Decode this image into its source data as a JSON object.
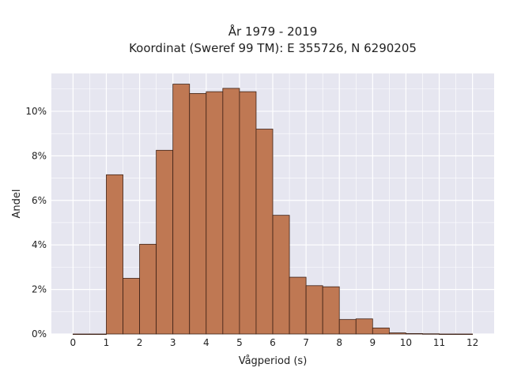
{
  "chart_data": {
    "type": "bar",
    "title_line1": "År 1979 - 2019",
    "title_line2": "Koordinat (Sweref 99 TM): E 355726, N 6290205",
    "xlabel": "Vågperiod (s)",
    "ylabel": "Andel",
    "bin_width": 0.5,
    "bin_starts": [
      0,
      0.5,
      1,
      1.5,
      2,
      2.5,
      3,
      3.5,
      4,
      4.5,
      5,
      5.5,
      6,
      6.5,
      7,
      7.5,
      8,
      8.5,
      9,
      9.5,
      10,
      10.5,
      11,
      11.5
    ],
    "values": [
      0.0,
      0.0,
      7.15,
      2.5,
      4.03,
      8.25,
      11.22,
      10.8,
      10.88,
      11.03,
      10.88,
      9.2,
      5.33,
      2.55,
      2.17,
      2.12,
      0.65,
      0.68,
      0.27,
      0.05,
      0.02,
      0.01,
      0.0,
      0.0
    ],
    "xlim": [
      -0.65,
      12.65
    ],
    "ylim": [
      0,
      11.7
    ],
    "xticks": [
      0,
      1,
      2,
      3,
      4,
      5,
      6,
      7,
      8,
      9,
      10,
      11,
      12
    ],
    "yticks": [
      0,
      2,
      4,
      6,
      8,
      10
    ],
    "ytick_suffix": "%",
    "grid": true,
    "colors": {
      "bar_fill": "#bf7853",
      "bar_edge": "#3d2116",
      "plot_bg": "#e6e6f0",
      "grid": "#ffffff"
    }
  }
}
